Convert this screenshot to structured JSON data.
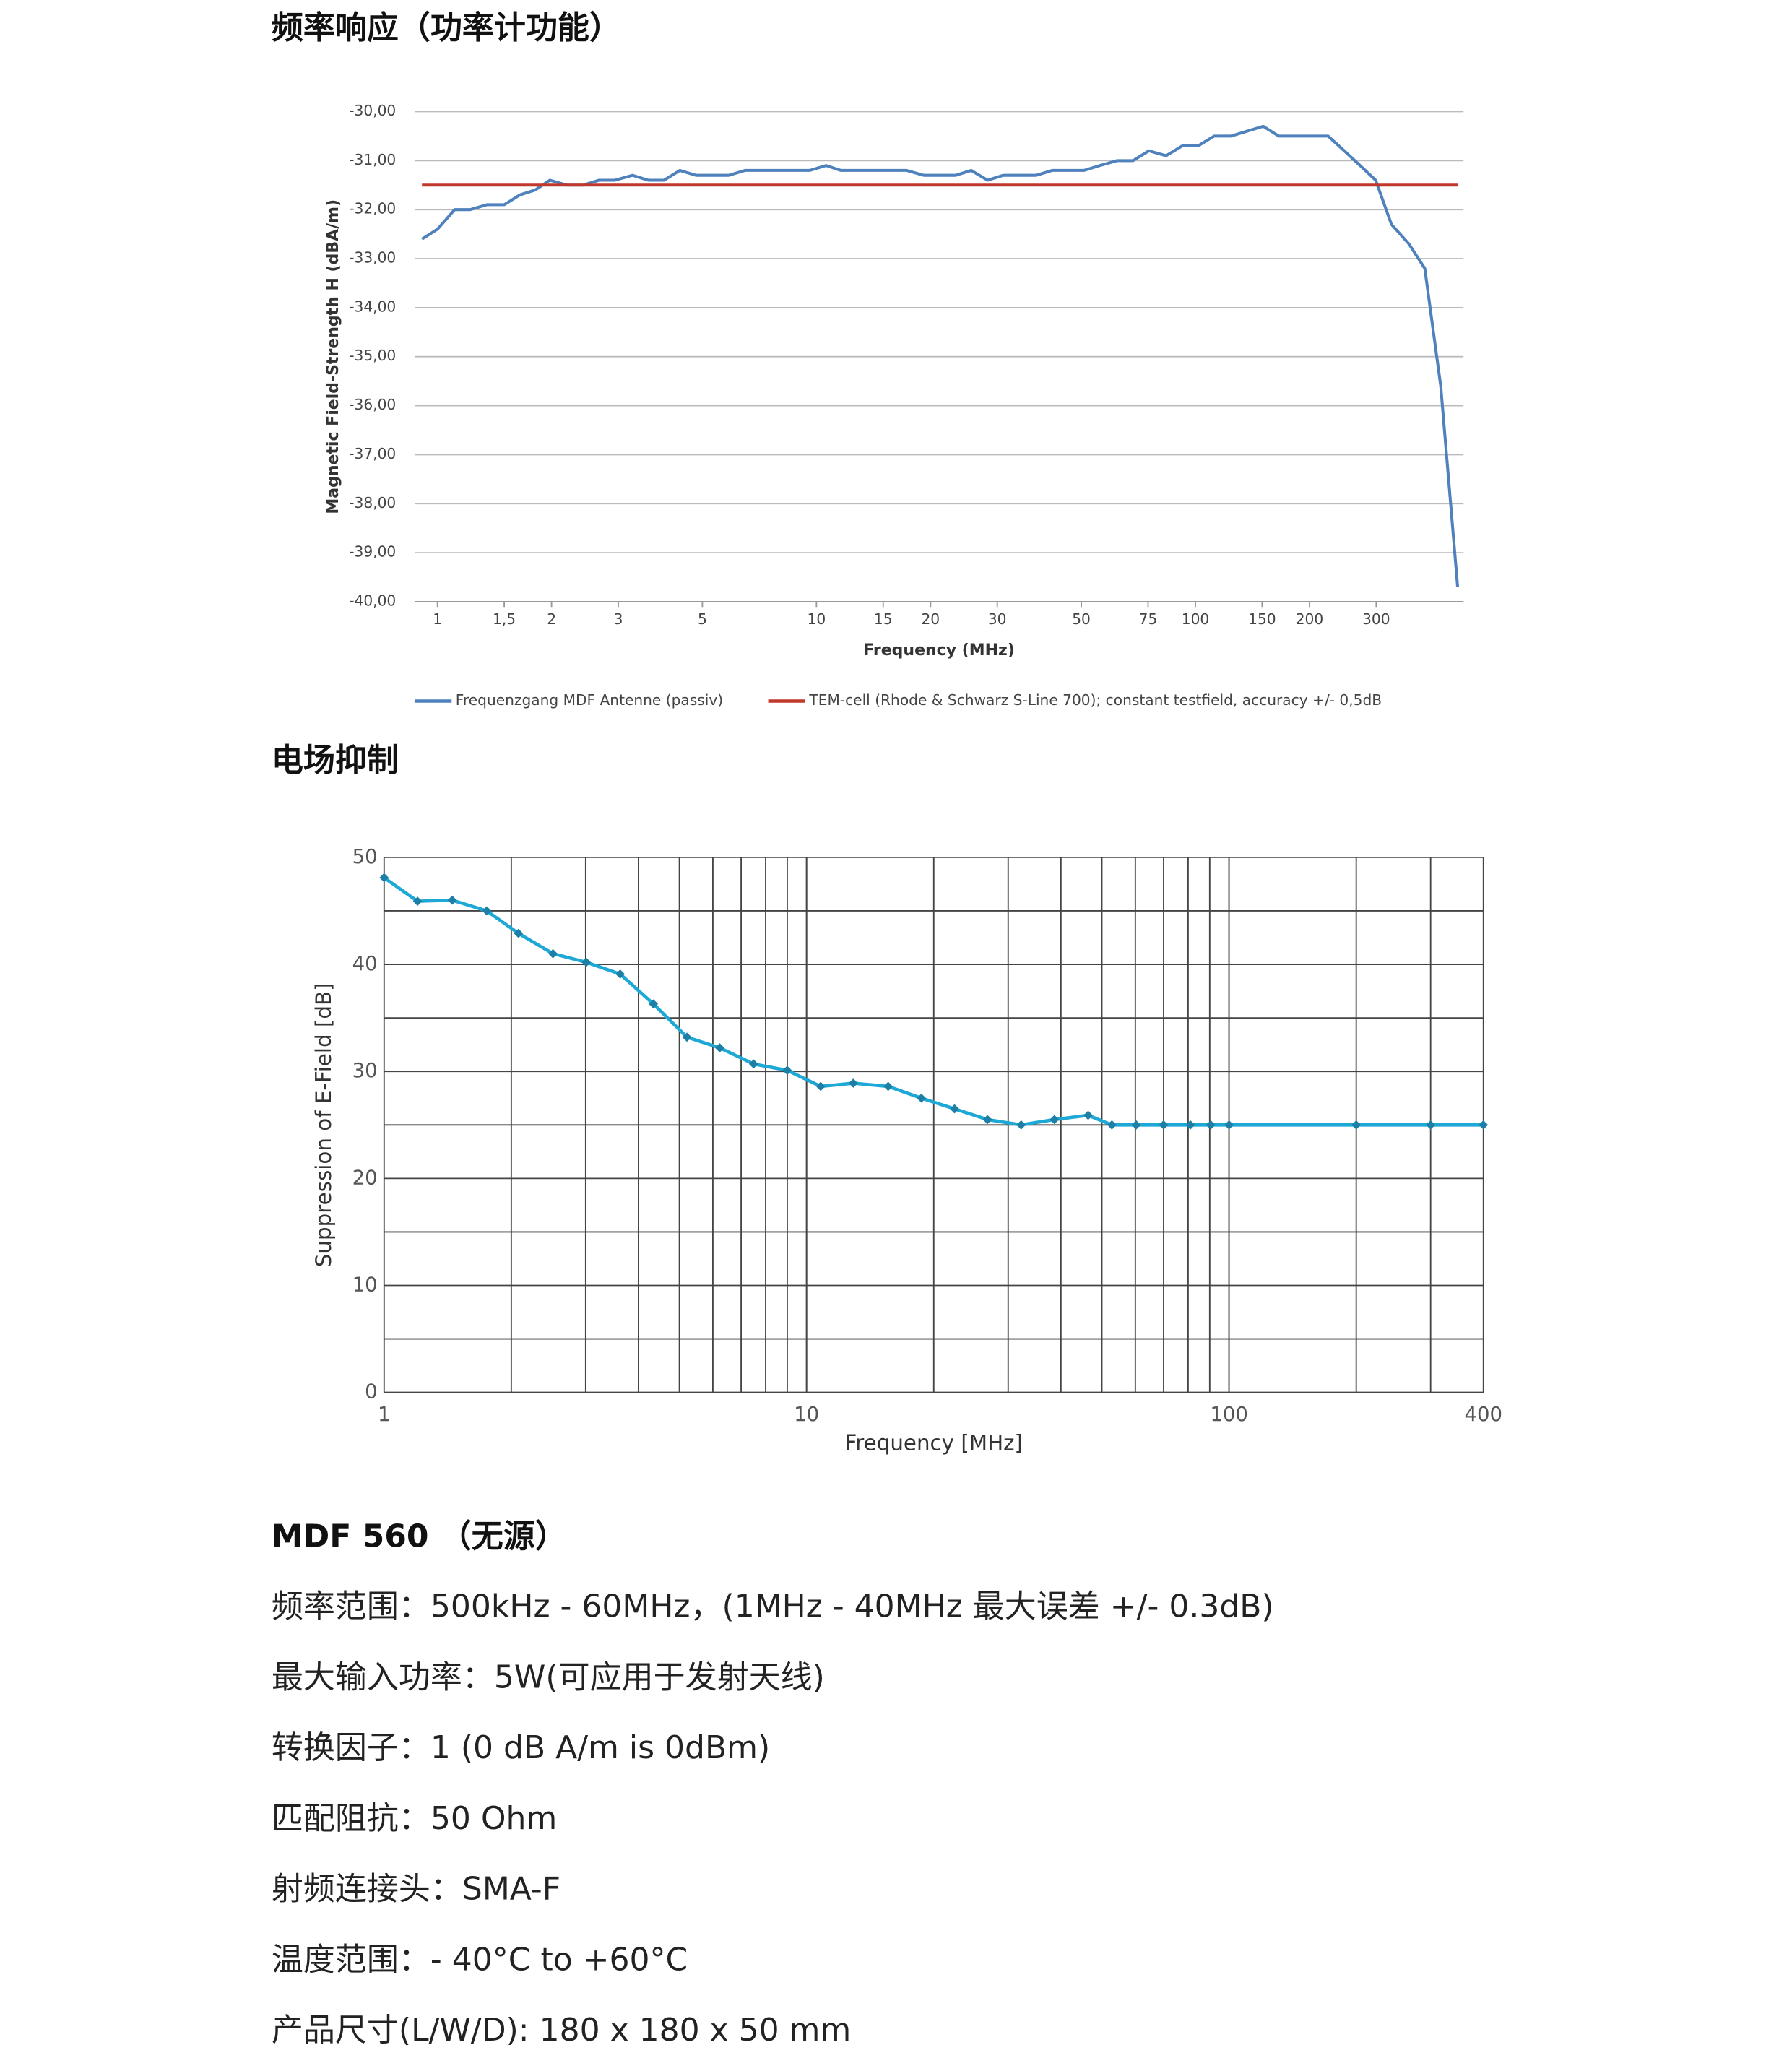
{
  "chart_data": [
    {
      "type": "line",
      "title": "频率响应（功率计功能）",
      "x_label": "Frequency (MHz)",
      "y_label": "Magnetic Field-Strength H (dBA/m)",
      "xlog": true,
      "xlim": [
        0.87,
        510
      ],
      "xticks": [
        1,
        {
          "value": 1.5,
          "label": "1,5"
        },
        2,
        3,
        5,
        10,
        15,
        20,
        30,
        50,
        75,
        100,
        150,
        200,
        300
      ],
      "ylim": [
        -40,
        -30
      ],
      "yticks": [
        {
          "value": -30,
          "label": "-30,00"
        },
        {
          "value": -31,
          "label": "-31,00"
        },
        {
          "value": -32,
          "label": "-32,00"
        },
        {
          "value": -33,
          "label": "-33,00"
        },
        {
          "value": -34,
          "label": "-34,00"
        },
        {
          "value": -35,
          "label": "-35,00"
        },
        {
          "value": -36,
          "label": "-36,00"
        },
        {
          "value": -37,
          "label": "-37,00"
        },
        {
          "value": -38,
          "label": "-38,00"
        },
        {
          "value": -39,
          "label": "-39,00"
        },
        {
          "value": -40,
          "label": "-40,00"
        }
      ],
      "grid": true,
      "legend": "bottom",
      "series": [
        {
          "name": "Frequenzgang MDF Antenne (passiv)",
          "color": "#4f81bd",
          "x": [
            0.91,
            1,
            1.11,
            1.22,
            1.35,
            1.5,
            1.65,
            1.81,
            1.98,
            2.2,
            2.42,
            2.67,
            2.94,
            3.27,
            3.6,
            3.96,
            4.36,
            4.81,
            5.87,
            6.48,
            9.6,
            10.6,
            11.6,
            17.3,
            19.2,
            23.3,
            25.6,
            28.3,
            31.1,
            38,
            41.9,
            50.8,
            56,
            62.2,
            68.5,
            75.4,
            83.7,
            92.3,
            101.6,
            112,
            124,
            151,
            166,
            224,
            247,
            272,
            299,
            329,
            366,
            403,
            444,
            492
          ],
          "values": [
            -32.6,
            -32.4,
            -32.0,
            -32.0,
            -31.9,
            -31.9,
            -31.7,
            -31.6,
            -31.4,
            -31.5,
            -31.5,
            -31.4,
            -31.4,
            -31.3,
            -31.4,
            -31.4,
            -31.2,
            -31.3,
            -31.3,
            -31.2,
            -31.2,
            -31.1,
            -31.2,
            -31.2,
            -31.3,
            -31.3,
            -31.2,
            -31.4,
            -31.3,
            -31.3,
            -31.2,
            -31.2,
            -31.1,
            -31.0,
            -31.0,
            -30.8,
            -30.9,
            -30.7,
            -30.7,
            -30.5,
            -30.5,
            -30.3,
            -30.5,
            -30.5,
            -30.8,
            -31.1,
            -31.4,
            -32.3,
            -32.7,
            -33.2,
            -35.6,
            -39.7
          ]
        },
        {
          "name": "TEM-cell (Rhode & Schwarz S-Line 700); constant testfield, accuracy +/- 0,5dB",
          "color": "#c0392b",
          "x": [
            0.91,
            492
          ],
          "values": [
            -31.5,
            -31.5
          ]
        }
      ]
    },
    {
      "type": "line",
      "title": "电场抑制",
      "x_label": "Frequency [MHz]",
      "y_label": "Suppression of E-Field [dB]",
      "xlog": true,
      "xlim": [
        1,
        400
      ],
      "xticks": [
        1,
        10,
        100,
        400
      ],
      "ylim": [
        0,
        50
      ],
      "yticks": [
        0,
        10,
        20,
        30,
        40,
        50
      ],
      "grid": true,
      "markers": true,
      "series": [
        {
          "color": "#1ea8d6",
          "x": [
            1,
            1.2,
            1.45,
            1.75,
            2.08,
            2.51,
            3.01,
            3.62,
            4.34,
            5.21,
            6.23,
            7.49,
            9.0,
            10.8,
            12.9,
            15.6,
            18.7,
            22.4,
            26.8,
            32.2,
            38.6,
            46.4,
            52.8,
            60.3,
            70,
            81,
            90.5,
            100,
            200,
            300,
            400
          ],
          "values": [
            48.1,
            45.9,
            46.0,
            45.0,
            42.9,
            41.0,
            40.2,
            39.1,
            36.3,
            33.2,
            32.2,
            30.7,
            30.1,
            28.6,
            28.9,
            28.6,
            27.5,
            26.5,
            25.5,
            25.0,
            25.5,
            25.9,
            25.0,
            25.0,
            25.0,
            25.0,
            25.0,
            25.0,
            25.0,
            25.0,
            25.0
          ]
        }
      ]
    }
  ],
  "specs": {
    "title": "MDF 560 （无源）",
    "lines": [
      "频率范围：500kHz - 60MHz，(1MHz - 40MHz 最大误差  +/- 0.3dB)",
      "最大输入功率：5W(可应用于发射天线)",
      "转换因子：1 (0 dB A/m is 0dBm)",
      "匹配阻抗：50 Ohm",
      "射频连接头：SMA-F",
      "温度范围：- 40°C to +60°C",
      "产品尺寸(L/W/D): 180 x 180 x 50 mm"
    ]
  }
}
